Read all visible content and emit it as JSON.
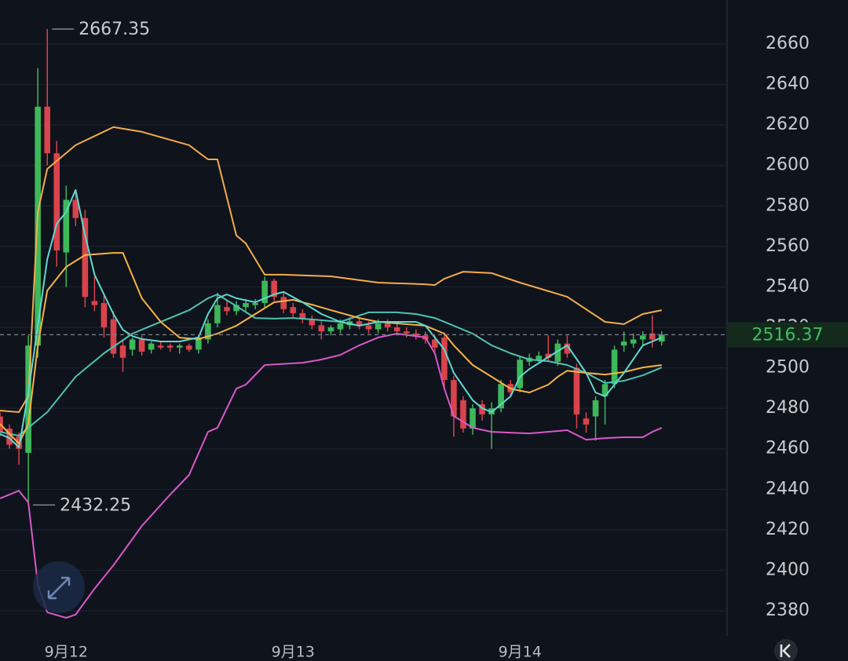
{
  "chart_data": {
    "type": "candlestick",
    "categories": [
      null,
      null,
      null,
      null,
      null,
      null,
      null,
      "9月12",
      null,
      null,
      null,
      null,
      null,
      null,
      null,
      null,
      null,
      null,
      null,
      null,
      null,
      null,
      null,
      null,
      null,
      null,
      null,
      null,
      null,
      null,
      null,
      "9月13",
      null,
      null,
      null,
      null,
      null,
      null,
      null,
      null,
      null,
      null,
      null,
      null,
      null,
      null,
      null,
      null,
      null,
      null,
      null,
      null,
      null,
      null,
      null,
      "9月14",
      null,
      null,
      null,
      null,
      null,
      null,
      null,
      null,
      null,
      null,
      null,
      null,
      null,
      null,
      null
    ],
    "open": [
      2476,
      2470,
      2466,
      2458,
      2511,
      2629,
      2606,
      2557,
      2583,
      2574,
      2533,
      2532,
      2524,
      2511,
      2509,
      2514,
      2509,
      2511,
      2511,
      2510,
      2511,
      2509,
      2514,
      2522,
      2530,
      2528,
      2530,
      2531,
      2532,
      2543,
      2535,
      2530,
      2527,
      2524,
      2521,
      2518,
      2519,
      2521,
      2523,
      2521,
      2519,
      2522,
      2520,
      2518,
      2517,
      2516,
      2514,
      2515,
      2494,
      2484,
      2470,
      2482,
      2477,
      2480,
      2492,
      2490,
      2503,
      2504,
      2507,
      2503,
      2512,
      2500,
      2475,
      2476,
      2486,
      2492,
      2511,
      2512,
      2514,
      2517,
      2513
    ],
    "high": [
      2478,
      2472,
      2468,
      2516,
      2648,
      2667.35,
      2612,
      2590,
      2588,
      2578,
      2545,
      2536,
      2528,
      2514,
      2515,
      2516,
      2513,
      2513,
      2512,
      2512,
      2512,
      2516,
      2524,
      2537,
      2533,
      2533,
      2534,
      2534,
      2545,
      2544,
      2537,
      2532,
      2529,
      2526,
      2523,
      2521,
      2524,
      2525,
      2525,
      2523,
      2524,
      2524,
      2522,
      2520,
      2519,
      2518,
      2516,
      2517,
      2496,
      2486,
      2482,
      2484,
      2483,
      2494,
      2494,
      2506,
      2507,
      2508,
      2516,
      2514,
      2516,
      2502,
      2478,
      2486,
      2494,
      2511,
      2518,
      2517,
      2518,
      2526,
      2518
    ],
    "low": [
      2466,
      2460,
      2452,
      2432.25,
      2505,
      2600,
      2550,
      2540,
      2570,
      2530,
      2528,
      2515,
      2505,
      2498,
      2506,
      2506,
      2507,
      2509,
      2508,
      2507,
      2508,
      2507,
      2512,
      2520,
      2526,
      2526,
      2528,
      2529,
      2530,
      2533,
      2527,
      2525,
      2522,
      2519,
      2514,
      2516,
      2517,
      2519,
      2519,
      2517,
      2517,
      2518,
      2516,
      2515,
      2514,
      2512,
      2508,
      2490,
      2466,
      2468,
      2467,
      2474,
      2460,
      2478,
      2486,
      2488,
      2501,
      2502,
      2503,
      2501,
      2505,
      2470,
      2468,
      2464,
      2472,
      2490,
      2508,
      2510,
      2511,
      2510,
      2511
    ],
    "close": [
      2468,
      2462,
      2460,
      2511,
      2629,
      2606,
      2558,
      2583,
      2574,
      2535,
      2531,
      2520,
      2507,
      2505,
      2514,
      2508,
      2512,
      2510,
      2510,
      2511,
      2509,
      2515,
      2522,
      2531,
      2528,
      2531,
      2532,
      2532,
      2543,
      2535,
      2529,
      2527,
      2524,
      2521,
      2518,
      2520,
      2522,
      2523,
      2521,
      2519,
      2522,
      2520,
      2518,
      2517,
      2516,
      2514,
      2510,
      2494,
      2476,
      2470,
      2480,
      2477,
      2480,
      2492,
      2488,
      2504,
      2505,
      2506,
      2505,
      2512,
      2507,
      2477,
      2472,
      2484,
      2492,
      2509,
      2513,
      2514,
      2516,
      2514,
      2516.37
    ],
    "up_color": "#3db85a",
    "down_color": "#d9434c",
    "lines": [
      {
        "color": "#f2ad4c",
        "x": [
          0,
          2,
          3,
          4,
          5,
          8,
          12,
          15,
          20,
          22,
          23,
          25,
          26,
          28,
          30,
          35,
          40,
          45,
          46,
          47,
          49,
          52,
          55,
          60,
          64,
          66,
          68,
          70
        ],
        "values": [
          2478.9,
          2478.1,
          2486,
          2577,
          2598.3,
          2610,
          2618.9,
          2616.6,
          2610,
          2603,
          2603,
          2565.4,
          2561.5,
          2546,
          2546,
          2545.2,
          2542.1,
          2541.3,
          2540.9,
          2544,
          2547.5,
          2546.8,
          2542.1,
          2535.1,
          2522.7,
          2521.6,
          2526.6,
          2528.5
        ]
      },
      {
        "color": "#d858c8",
        "x": [
          0,
          2,
          3,
          4,
          5,
          7,
          8,
          10,
          12,
          15,
          18,
          20,
          22,
          23,
          25,
          26,
          28,
          32,
          34,
          36,
          38,
          40,
          42,
          45,
          46,
          47,
          48,
          50,
          52,
          56,
          60,
          62,
          64,
          66,
          68,
          69,
          70
        ],
        "values": [
          2435.5,
          2439.3,
          2433.5,
          2392.8,
          2379.2,
          2376.5,
          2378.1,
          2390.9,
          2402.5,
          2421.9,
          2437.4,
          2447.1,
          2468.4,
          2470.4,
          2489.7,
          2491.7,
          2501.4,
          2502.5,
          2504.1,
          2506.4,
          2511.1,
          2515,
          2516.9,
          2515,
          2507.2,
          2489.7,
          2476.2,
          2470.4,
          2468.4,
          2467.6,
          2469.2,
          2464.5,
          2465.3,
          2465.7,
          2465.7,
          2468.4,
          2470.4
        ]
      },
      {
        "color": "#4fc2b0",
        "x": [
          0,
          2,
          3,
          5,
          8,
          11,
          14,
          16,
          18,
          20,
          22,
          23,
          25,
          27,
          29,
          31,
          33,
          36,
          39,
          42,
          44,
          46,
          48,
          50,
          52,
          54,
          56,
          58,
          60,
          62,
          64,
          66,
          68,
          70
        ],
        "values": [
          2468.4,
          2466.5,
          2470.4,
          2478.1,
          2495.6,
          2507.2,
          2516.9,
          2520.8,
          2524.6,
          2528.5,
          2534.4,
          2536.3,
          2530.5,
          2524.6,
          2524.3,
          2524.6,
          2523.9,
          2522.7,
          2527.4,
          2527.4,
          2526.6,
          2524.6,
          2520.8,
          2516.9,
          2511.1,
          2507.2,
          2504.1,
          2503.3,
          2501.4,
          2497.5,
          2492.5,
          2493.6,
          2496.3,
          2500.2
        ]
      },
      {
        "color": "#f5b342",
        "x": [
          0,
          2,
          3,
          4,
          5,
          7,
          9,
          12,
          13,
          15,
          17,
          19,
          21,
          23,
          25,
          27,
          29,
          31,
          33,
          35,
          38,
          40,
          45,
          47,
          48,
          50,
          52,
          54,
          56,
          58,
          59,
          60,
          62,
          64,
          66,
          68,
          70
        ],
        "values": [
          2472.3,
          2462.6,
          2472.3,
          2511.1,
          2538.2,
          2549.9,
          2555.7,
          2556.8,
          2556.8,
          2534.4,
          2522.7,
          2514.9,
          2514.2,
          2516.9,
          2520.8,
          2526.6,
          2532.4,
          2533.6,
          2531.2,
          2528.5,
          2524.6,
          2522.7,
          2520.8,
          2516.9,
          2511.1,
          2501.4,
          2495.6,
          2489.7,
          2487.8,
          2491.7,
          2495.6,
          2498.6,
          2497.5,
          2496.7,
          2497.9,
          2500.2,
          2501.4
        ]
      },
      {
        "color": "#5fd9d0",
        "x": [
          0,
          1,
          2,
          3,
          4,
          5,
          6,
          7,
          8,
          9,
          10,
          11,
          12,
          13,
          14,
          15,
          17,
          19,
          21,
          22,
          23,
          24,
          25,
          27,
          29,
          30,
          32,
          34,
          36,
          38,
          40,
          42,
          44,
          45,
          47,
          48,
          50,
          51,
          52,
          53,
          54,
          55,
          56,
          58,
          60,
          62,
          63,
          64,
          66,
          68,
          70
        ],
        "values": [
          2467.3,
          2465.3,
          2460.7,
          2487.8,
          2520.8,
          2553.7,
          2571.2,
          2577,
          2587.9,
          2565.4,
          2546,
          2536.3,
          2526.6,
          2518.8,
          2515.7,
          2514.2,
          2513,
          2513,
          2515,
          2526.6,
          2534.4,
          2536.3,
          2534.4,
          2532.4,
          2536.3,
          2537.5,
          2532.4,
          2526.6,
          2522.7,
          2520.8,
          2522.7,
          2522.7,
          2522.7,
          2520.8,
          2509.1,
          2497.5,
          2484,
          2480.1,
          2478.1,
          2482,
          2485.9,
          2495.6,
          2499.4,
          2505.3,
          2511.1,
          2497.5,
          2487.8,
          2485.9,
          2497.5,
          2511.1,
          2515
        ]
      }
    ],
    "annotations": [
      {
        "x": 5,
        "value": 2667.35
      },
      {
        "x": 3,
        "value": 2432.25
      }
    ],
    "last_price": 2516.37,
    "ylim": [
      2367.6,
      2681.7
    ],
    "yticks": [
      2380,
      2400,
      2420,
      2440,
      2460,
      2480,
      2500,
      2520,
      2540,
      2560,
      2580,
      2600,
      2620,
      2640,
      2660
    ],
    "grid": true
  }
}
